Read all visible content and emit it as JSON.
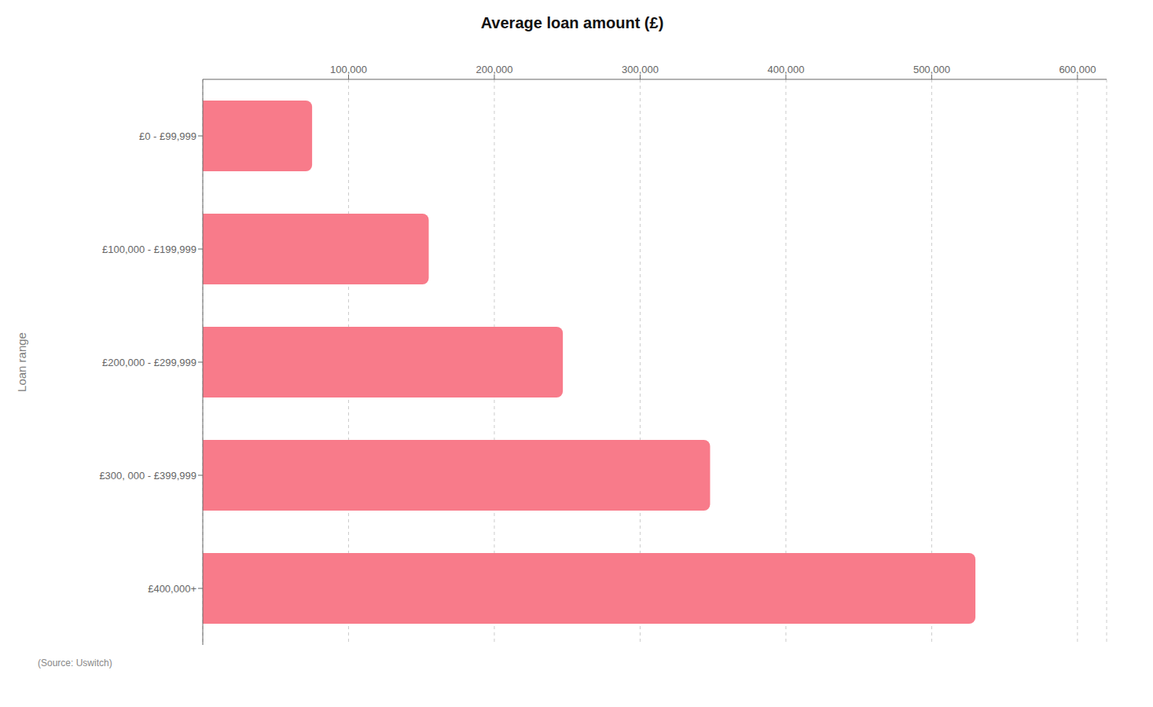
{
  "chart_data": {
    "type": "bar",
    "orientation": "horizontal",
    "title": "Average loan amount (£)",
    "ylabel": "Loan range",
    "categories": [
      "£0 - £99,999",
      "£100,000 - £199,999",
      "£200,000 - £299,999",
      "£300, 000 - £399,999",
      "£400,000+"
    ],
    "values": [
      75000,
      155000,
      247000,
      348000,
      530000
    ],
    "color": "#f87b8a",
    "xlim": [
      0,
      620000
    ],
    "xticks": [
      {
        "value": 100000,
        "label": "100,000"
      },
      {
        "value": 200000,
        "label": "200,000"
      },
      {
        "value": 300000,
        "label": "300,000"
      },
      {
        "value": 400000,
        "label": "400,000"
      },
      {
        "value": 500000,
        "label": "500,000"
      },
      {
        "value": 600000,
        "label": "600,000"
      }
    ],
    "grid": true,
    "annotations": [
      "(Source: Uswitch)"
    ]
  }
}
